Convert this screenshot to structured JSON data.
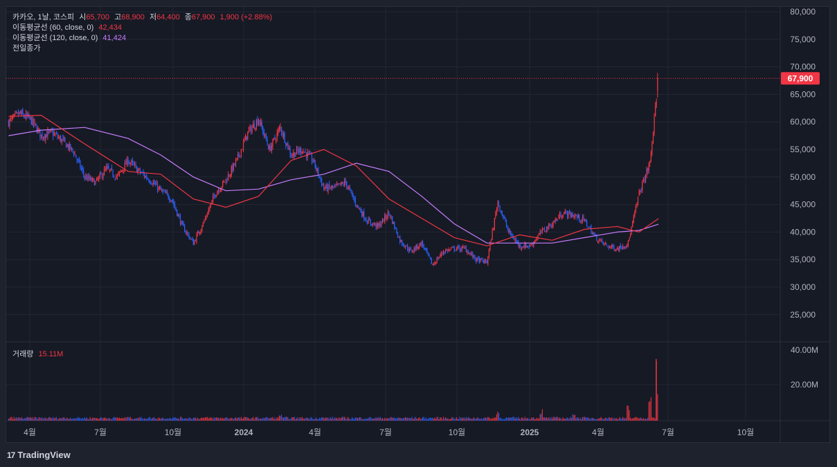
{
  "legend": {
    "symbol": "카카오, 1날, 코스피",
    "open_label": "시",
    "open": "65,700",
    "high_label": "고",
    "high": "68,900",
    "low_label": "저",
    "low": "64,400",
    "close_label": "종",
    "close": "67,900",
    "change": "1,900 (+2.88%)",
    "ma60_label": "이동평균선 (60, close, 0)",
    "ma60_value": "42,434",
    "ma120_label": "이동평균선 (120, close, 0)",
    "ma120_value": "41,424",
    "prev_close_label": "전일종가"
  },
  "volume_legend": {
    "label": "거래량",
    "value": "15.11M"
  },
  "price_tag": "67,900",
  "footer": {
    "brand": "TradingView",
    "logo": "17"
  },
  "colors": {
    "up": "#f23645",
    "down": "#2962ff",
    "ma60": "#f23645",
    "ma120": "#c77dff"
  },
  "chart_data": {
    "type": "candlestick",
    "x_ticks": [
      "4월",
      "7월",
      "10월",
      "2024",
      "4월",
      "7월",
      "10월",
      "2025",
      "4월",
      "7월",
      "10월"
    ],
    "y_ticks": [
      "80,000",
      "75,000",
      "70,000",
      "65,000",
      "60,000",
      "55,000",
      "50,000",
      "45,000",
      "40,000",
      "35,000",
      "30,000",
      "25,000"
    ],
    "y_range": [
      20000,
      80000
    ],
    "volume_ticks": [
      "40.00M",
      "20.00M"
    ],
    "last_price": 67900,
    "close_series": [
      [
        "2023-03-13",
        60000
      ],
      [
        "2023-03-27",
        61500
      ],
      [
        "2023-04-10",
        60500
      ],
      [
        "2023-04-24",
        57500
      ],
      [
        "2023-05-08",
        58000
      ],
      [
        "2023-05-22",
        56500
      ],
      [
        "2023-06-05",
        54500
      ],
      [
        "2023-06-19",
        50000
      ],
      [
        "2023-07-03",
        49000
      ],
      [
        "2023-07-17",
        51500
      ],
      [
        "2023-07-31",
        50000
      ],
      [
        "2023-08-14",
        53000
      ],
      [
        "2023-08-28",
        51000
      ],
      [
        "2023-09-11",
        49500
      ],
      [
        "2023-09-25",
        47500
      ],
      [
        "2023-10-09",
        46000
      ],
      [
        "2023-10-23",
        41000
      ],
      [
        "2023-11-06",
        38000
      ],
      [
        "2023-11-20",
        42000
      ],
      [
        "2023-12-04",
        47000
      ],
      [
        "2023-12-18",
        49500
      ],
      [
        "2024-01-01",
        53000
      ],
      [
        "2024-01-15",
        58000
      ],
      [
        "2024-01-29",
        60500
      ],
      [
        "2024-02-12",
        55000
      ],
      [
        "2024-02-26",
        59000
      ],
      [
        "2024-03-11",
        54000
      ],
      [
        "2024-03-25",
        55000
      ],
      [
        "2024-04-08",
        53000
      ],
      [
        "2024-04-22",
        48000
      ],
      [
        "2024-05-06",
        48000
      ],
      [
        "2024-05-20",
        49000
      ],
      [
        "2024-06-03",
        45000
      ],
      [
        "2024-06-17",
        42000
      ],
      [
        "2024-07-01",
        41000
      ],
      [
        "2024-07-15",
        43500
      ],
      [
        "2024-07-29",
        38500
      ],
      [
        "2024-08-12",
        36500
      ],
      [
        "2024-08-26",
        38000
      ],
      [
        "2024-09-09",
        34000
      ],
      [
        "2024-09-23",
        36500
      ],
      [
        "2024-10-07",
        37000
      ],
      [
        "2024-10-21",
        37000
      ],
      [
        "2024-11-04",
        35000
      ],
      [
        "2024-11-18",
        34500
      ],
      [
        "2024-12-02",
        45500
      ],
      [
        "2024-12-16",
        40000
      ],
      [
        "2024-12-30",
        37500
      ],
      [
        "2025-01-13",
        37500
      ],
      [
        "2025-01-27",
        40000
      ],
      [
        "2025-02-10",
        41500
      ],
      [
        "2025-02-24",
        43500
      ],
      [
        "2025-03-10",
        43000
      ],
      [
        "2025-03-24",
        42000
      ],
      [
        "2025-04-07",
        39000
      ],
      [
        "2025-04-21",
        37500
      ],
      [
        "2025-05-05",
        37000
      ],
      [
        "2025-05-19",
        38000
      ],
      [
        "2025-06-02",
        47000
      ],
      [
        "2025-06-16",
        52500
      ],
      [
        "2025-06-27",
        67900
      ]
    ],
    "ma60": [
      [
        "2023-03-13",
        61000
      ],
      [
        "2023-04-24",
        61200
      ],
      [
        "2023-06-19",
        56000
      ],
      [
        "2023-08-14",
        51000
      ],
      [
        "2023-09-25",
        50500
      ],
      [
        "2023-11-06",
        46000
      ],
      [
        "2023-12-18",
        44500
      ],
      [
        "2024-01-29",
        46500
      ],
      [
        "2024-03-11",
        53000
      ],
      [
        "2024-04-22",
        55000
      ],
      [
        "2024-06-03",
        52000
      ],
      [
        "2024-07-15",
        46000
      ],
      [
        "2024-08-26",
        42500
      ],
      [
        "2024-10-07",
        39000
      ],
      [
        "2024-11-18",
        37500
      ],
      [
        "2024-12-30",
        39500
      ],
      [
        "2025-02-10",
        38500
      ],
      [
        "2025-03-24",
        40500
      ],
      [
        "2025-05-05",
        41000
      ],
      [
        "2025-06-02",
        40000
      ],
      [
        "2025-06-27",
        42434
      ]
    ],
    "ma120": [
      [
        "2023-03-13",
        57500
      ],
      [
        "2023-04-24",
        58500
      ],
      [
        "2023-06-19",
        59000
      ],
      [
        "2023-08-14",
        57000
      ],
      [
        "2023-09-25",
        54000
      ],
      [
        "2023-11-06",
        50000
      ],
      [
        "2023-12-18",
        47500
      ],
      [
        "2024-01-29",
        47800
      ],
      [
        "2024-03-11",
        49500
      ],
      [
        "2024-04-22",
        50500
      ],
      [
        "2024-06-03",
        52500
      ],
      [
        "2024-07-15",
        51000
      ],
      [
        "2024-08-26",
        46500
      ],
      [
        "2024-10-07",
        41500
      ],
      [
        "2024-11-18",
        38000
      ],
      [
        "2024-12-30",
        38000
      ],
      [
        "2025-02-10",
        38000
      ],
      [
        "2025-03-24",
        39000
      ],
      [
        "2025-05-05",
        40000
      ],
      [
        "2025-06-02",
        40300
      ],
      [
        "2025-06-27",
        41424
      ]
    ],
    "volume_spikes_millions": [
      [
        "2023-08-14",
        2.5
      ],
      [
        "2024-02-26",
        3.5
      ],
      [
        "2024-12-02",
        7
      ],
      [
        "2025-01-27",
        7
      ],
      [
        "2025-03-10",
        5
      ],
      [
        "2025-05-19",
        9
      ],
      [
        "2025-06-16",
        15
      ],
      [
        "2025-06-27",
        35
      ]
    ]
  }
}
